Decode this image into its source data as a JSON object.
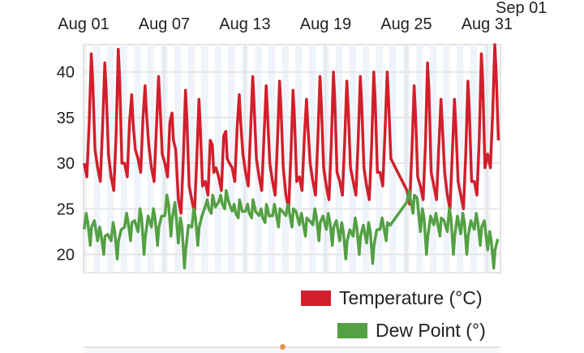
{
  "chart_data": {
    "type": "line",
    "title": "",
    "xlabel": "",
    "ylabel": "",
    "x_unit": "days since Aug 01",
    "xlim": [
      0,
      31
    ],
    "ylim": [
      18,
      43
    ],
    "yticks": [
      20,
      25,
      30,
      35,
      40
    ],
    "xticks": [
      {
        "day": 0,
        "label": "Aug 01"
      },
      {
        "day": 6,
        "label": "Aug 07"
      },
      {
        "day": 12,
        "label": "Aug 13"
      },
      {
        "day": 18,
        "label": "Aug 19"
      },
      {
        "day": 24,
        "label": "Aug 25"
      },
      {
        "day": 30,
        "label": "Aug 31"
      },
      {
        "day": 31,
        "label": "Sep 01"
      }
    ],
    "grid": true,
    "legend_position": "bottom-right",
    "missing_days": [
      23
    ],
    "series": [
      {
        "name": "Temperature (°C)",
        "color": "#d21f2b",
        "daily_low": [
          28.5,
          28,
          27,
          28.5,
          29,
          28,
          28.5,
          24.5,
          24.5,
          26.5,
          27,
          28,
          27.5,
          27,
          26.5,
          25,
          27,
          26.5,
          26,
          26.5,
          26.5,
          26,
          27.5,
          null,
          25.5,
          26,
          26,
          25,
          25,
          26.5,
          29.5
        ],
        "daily_high": [
          42,
          41,
          42.5,
          37.5,
          38.5,
          39.5,
          35.5,
          38,
          37,
          32,
          33.5,
          37.5,
          39.5,
          38.5,
          39,
          38,
          37,
          39.5,
          40,
          39,
          39.5,
          40,
          40,
          null,
          38.5,
          41,
          37,
          37,
          39,
          42,
          43
        ]
      },
      {
        "name": "Dew Point (°)",
        "color": "#54a044",
        "daily_low": [
          21,
          20,
          19.5,
          21.5,
          20,
          21,
          22,
          18.5,
          21,
          24.5,
          25,
          24,
          24,
          23.5,
          23,
          23,
          22,
          21.5,
          21,
          19.5,
          20,
          19,
          21.5,
          null,
          24.5,
          20,
          22,
          20,
          20,
          21,
          18.5
        ],
        "daily_high": [
          24.5,
          23,
          23.5,
          24.5,
          25,
          25,
          26.5,
          24,
          25,
          26,
          26.5,
          25.5,
          25.5,
          25,
          25.5,
          25.5,
          24.5,
          25,
          24.5,
          23.5,
          24,
          23.5,
          24,
          null,
          27,
          25,
          24.5,
          25,
          24.5,
          24.5,
          22.5
        ]
      }
    ]
  },
  "legend": {
    "temperature": "Temperature (°C)",
    "dew_point": "Dew Point (°)"
  }
}
